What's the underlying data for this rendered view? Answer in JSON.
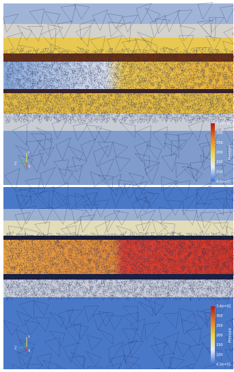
{
  "panels": [
    {
      "colorbar": {
        "title": "Pressure",
        "max_label": "3.4e+02",
        "ticks": [
          "300",
          "250",
          "200",
          "150",
          "100"
        ],
        "min_label": "4.5e+01"
      },
      "axes": {
        "y": "Y",
        "z": "Z",
        "x": "X"
      }
    },
    {
      "colorbar": {
        "title": "Pressure",
        "max_label": "3.4e+02",
        "ticks": [
          "300",
          "250",
          "200",
          "150",
          "100"
        ],
        "min_label": "4.5e+01"
      },
      "axes": {
        "y": "Y",
        "z": "Z",
        "x": "X"
      }
    }
  ]
}
